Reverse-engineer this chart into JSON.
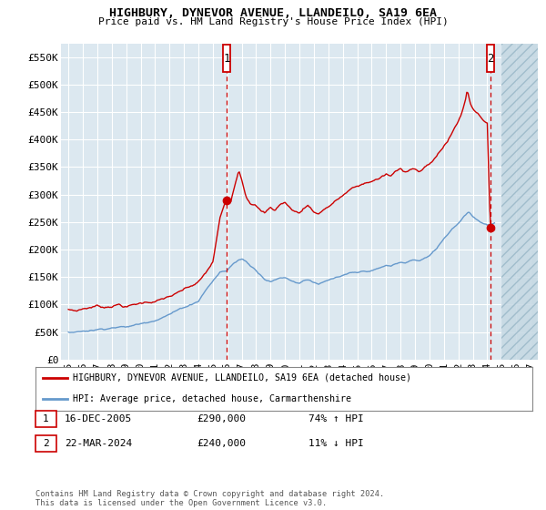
{
  "title": "HIGHBURY, DYNEVOR AVENUE, LLANDEILO, SA19 6EA",
  "subtitle": "Price paid vs. HM Land Registry's House Price Index (HPI)",
  "background_color": "#dce8f0",
  "ylim": [
    0,
    575000
  ],
  "yticks": [
    0,
    50000,
    100000,
    150000,
    200000,
    250000,
    300000,
    350000,
    400000,
    450000,
    500000,
    550000
  ],
  "xlim_start": 1994.5,
  "xlim_end": 2027.5,
  "xticks": [
    1995,
    1996,
    1997,
    1998,
    1999,
    2000,
    2001,
    2002,
    2003,
    2004,
    2005,
    2006,
    2007,
    2008,
    2009,
    2010,
    2011,
    2012,
    2013,
    2014,
    2015,
    2016,
    2017,
    2018,
    2019,
    2020,
    2021,
    2022,
    2023,
    2024,
    2025,
    2026,
    2027
  ],
  "red_line_color": "#cc0000",
  "blue_line_color": "#6699cc",
  "marker1_x": 2005.96,
  "marker1_y": 290000,
  "marker2_x": 2024.22,
  "marker2_y": 240000,
  "legend_label_red": "HIGHBURY, DYNEVOR AVENUE, LLANDEILO, SA19 6EA (detached house)",
  "legend_label_blue": "HPI: Average price, detached house, Carmarthenshire",
  "footer": "Contains HM Land Registry data © Crown copyright and database right 2024.\nThis data is licensed under the Open Government Licence v3.0.",
  "grid_color": "#ffffff",
  "future_hatch_start": 2025.0,
  "red_keypoints": [
    [
      1995.0,
      90000
    ],
    [
      1995.5,
      88000
    ],
    [
      1996.0,
      92000
    ],
    [
      1996.5,
      95000
    ],
    [
      1997.0,
      98000
    ],
    [
      1997.5,
      96000
    ],
    [
      1998.0,
      100000
    ],
    [
      1998.5,
      103000
    ],
    [
      1999.0,
      99000
    ],
    [
      1999.5,
      102000
    ],
    [
      2000.0,
      105000
    ],
    [
      2000.5,
      108000
    ],
    [
      2001.0,
      110000
    ],
    [
      2001.5,
      113000
    ],
    [
      2002.0,
      118000
    ],
    [
      2002.5,
      122000
    ],
    [
      2003.0,
      128000
    ],
    [
      2003.5,
      133000
    ],
    [
      2004.0,
      140000
    ],
    [
      2004.5,
      155000
    ],
    [
      2005.0,
      175000
    ],
    [
      2005.5,
      255000
    ],
    [
      2005.96,
      290000
    ],
    [
      2006.2,
      280000
    ],
    [
      2006.5,
      315000
    ],
    [
      2006.8,
      345000
    ],
    [
      2007.0,
      330000
    ],
    [
      2007.3,
      300000
    ],
    [
      2007.6,
      290000
    ],
    [
      2008.0,
      285000
    ],
    [
      2008.3,
      275000
    ],
    [
      2008.6,
      270000
    ],
    [
      2009.0,
      280000
    ],
    [
      2009.3,
      275000
    ],
    [
      2009.6,
      285000
    ],
    [
      2010.0,
      290000
    ],
    [
      2010.3,
      280000
    ],
    [
      2010.6,
      275000
    ],
    [
      2011.0,
      270000
    ],
    [
      2011.3,
      280000
    ],
    [
      2011.6,
      285000
    ],
    [
      2012.0,
      275000
    ],
    [
      2012.3,
      270000
    ],
    [
      2012.6,
      278000
    ],
    [
      2013.0,
      285000
    ],
    [
      2013.5,
      295000
    ],
    [
      2014.0,
      305000
    ],
    [
      2014.5,
      315000
    ],
    [
      2015.0,
      320000
    ],
    [
      2015.5,
      325000
    ],
    [
      2016.0,
      330000
    ],
    [
      2016.5,
      335000
    ],
    [
      2017.0,
      342000
    ],
    [
      2017.3,
      338000
    ],
    [
      2017.6,
      345000
    ],
    [
      2018.0,
      350000
    ],
    [
      2018.3,
      345000
    ],
    [
      2018.6,
      352000
    ],
    [
      2019.0,
      355000
    ],
    [
      2019.3,
      348000
    ],
    [
      2019.6,
      355000
    ],
    [
      2020.0,
      360000
    ],
    [
      2020.5,
      375000
    ],
    [
      2021.0,
      395000
    ],
    [
      2021.3,
      405000
    ],
    [
      2021.6,
      420000
    ],
    [
      2022.0,
      440000
    ],
    [
      2022.3,
      460000
    ],
    [
      2022.5,
      480000
    ],
    [
      2022.6,
      495000
    ],
    [
      2022.7,
      490000
    ],
    [
      2022.8,
      475000
    ],
    [
      2022.9,
      470000
    ],
    [
      2023.0,
      465000
    ],
    [
      2023.2,
      460000
    ],
    [
      2023.4,
      455000
    ],
    [
      2023.6,
      450000
    ],
    [
      2023.8,
      445000
    ],
    [
      2024.0,
      440000
    ],
    [
      2024.22,
      240000
    ],
    [
      2024.5,
      245000
    ]
  ],
  "blue_keypoints": [
    [
      1995.0,
      50000
    ],
    [
      1995.5,
      51000
    ],
    [
      1996.0,
      53000
    ],
    [
      1996.5,
      55000
    ],
    [
      1997.0,
      57000
    ],
    [
      1997.5,
      59000
    ],
    [
      1998.0,
      62000
    ],
    [
      1998.5,
      64000
    ],
    [
      1999.0,
      63000
    ],
    [
      1999.5,
      66000
    ],
    [
      2000.0,
      69000
    ],
    [
      2000.5,
      73000
    ],
    [
      2001.0,
      78000
    ],
    [
      2001.5,
      84000
    ],
    [
      2002.0,
      90000
    ],
    [
      2002.5,
      96000
    ],
    [
      2003.0,
      102000
    ],
    [
      2003.5,
      108000
    ],
    [
      2004.0,
      115000
    ],
    [
      2004.5,
      135000
    ],
    [
      2005.0,
      152000
    ],
    [
      2005.5,
      168000
    ],
    [
      2005.96,
      170000
    ],
    [
      2006.2,
      178000
    ],
    [
      2006.5,
      185000
    ],
    [
      2006.8,
      190000
    ],
    [
      2007.0,
      192000
    ],
    [
      2007.3,
      188000
    ],
    [
      2007.6,
      180000
    ],
    [
      2008.0,
      172000
    ],
    [
      2008.3,
      165000
    ],
    [
      2008.6,
      158000
    ],
    [
      2009.0,
      155000
    ],
    [
      2009.3,
      157000
    ],
    [
      2009.6,
      160000
    ],
    [
      2010.0,
      162000
    ],
    [
      2010.3,
      158000
    ],
    [
      2010.6,
      155000
    ],
    [
      2011.0,
      153000
    ],
    [
      2011.3,
      158000
    ],
    [
      2011.6,
      160000
    ],
    [
      2012.0,
      156000
    ],
    [
      2012.3,
      153000
    ],
    [
      2012.6,
      155000
    ],
    [
      2013.0,
      158000
    ],
    [
      2013.5,
      162000
    ],
    [
      2014.0,
      165000
    ],
    [
      2014.5,
      168000
    ],
    [
      2015.0,
      168000
    ],
    [
      2015.5,
      170000
    ],
    [
      2016.0,
      172000
    ],
    [
      2016.5,
      175000
    ],
    [
      2017.0,
      180000
    ],
    [
      2017.3,
      178000
    ],
    [
      2017.6,
      182000
    ],
    [
      2018.0,
      185000
    ],
    [
      2018.3,
      183000
    ],
    [
      2018.6,
      188000
    ],
    [
      2019.0,
      190000
    ],
    [
      2019.3,
      188000
    ],
    [
      2019.6,
      192000
    ],
    [
      2020.0,
      196000
    ],
    [
      2020.5,
      210000
    ],
    [
      2021.0,
      228000
    ],
    [
      2021.3,
      238000
    ],
    [
      2021.6,
      248000
    ],
    [
      2022.0,
      258000
    ],
    [
      2022.3,
      268000
    ],
    [
      2022.5,
      275000
    ],
    [
      2022.6,
      278000
    ],
    [
      2022.7,
      280000
    ],
    [
      2022.8,
      278000
    ],
    [
      2022.9,
      275000
    ],
    [
      2023.0,
      272000
    ],
    [
      2023.2,
      268000
    ],
    [
      2023.4,
      265000
    ],
    [
      2023.6,
      262000
    ],
    [
      2023.8,
      260000
    ],
    [
      2024.0,
      258000
    ],
    [
      2024.22,
      258000
    ],
    [
      2024.5,
      260000
    ]
  ]
}
